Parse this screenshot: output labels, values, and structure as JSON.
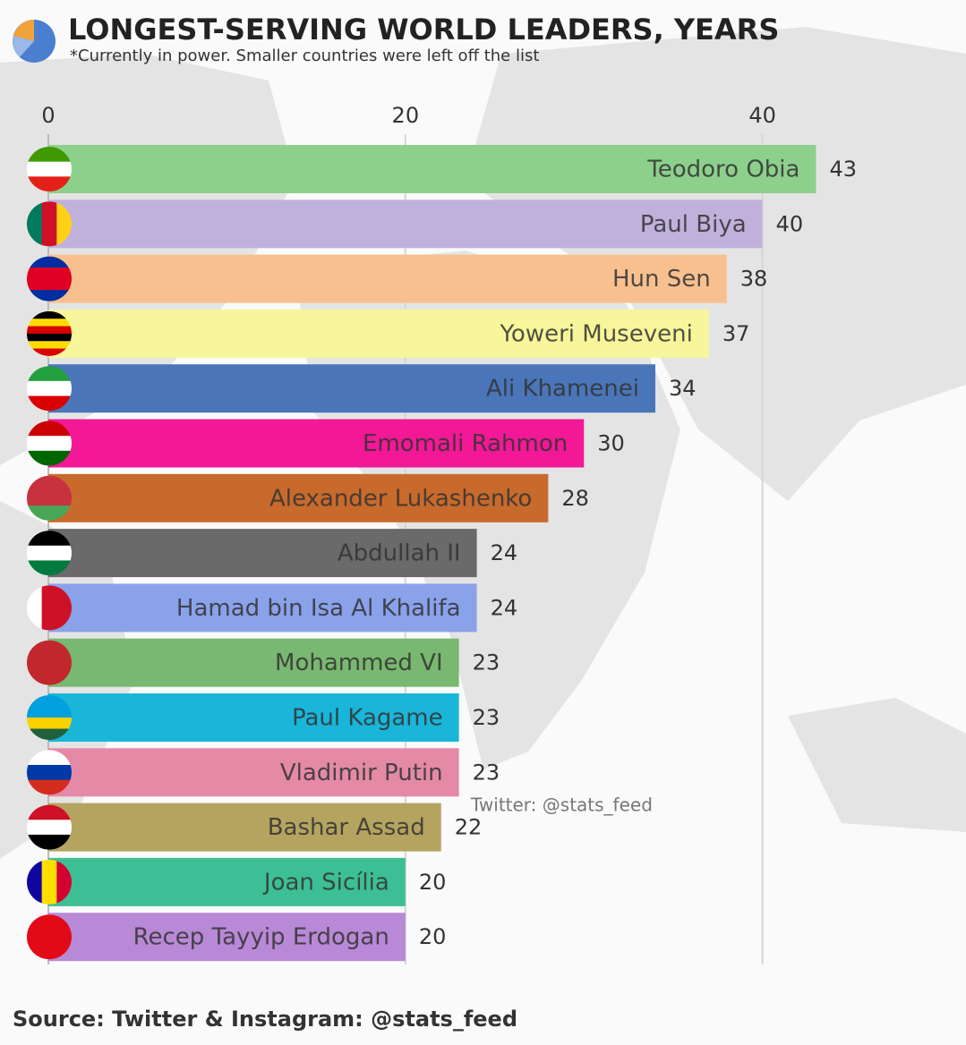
{
  "chart_data": {
    "type": "bar",
    "orientation": "horizontal",
    "title": "LONGEST-SERVING WORLD LEADERS, YEARS",
    "subtitle": "*Currently in power. Smaller countries were left off the list",
    "source": "Source: Twitter & Instagram: @stats_feed",
    "watermark": "Twitter: @stats_feed",
    "categories": [
      "Teodoro Obia",
      "Paul Biya",
      "Hun Sen",
      "Yoweri Museveni",
      "Ali Khamenei",
      "Emomali Rahmon",
      "Alexander Lukashenko",
      "Abdullah II",
      "Hamad bin Isa Al Khalifa",
      "Mohammed VI",
      "Paul Kagame",
      "Vladimir Putin",
      "Bashar Assad",
      "Joan Sicília",
      "Recep Tayyip Erdogan"
    ],
    "values": [
      43,
      40,
      38,
      37,
      34,
      30,
      28,
      24,
      24,
      23,
      23,
      23,
      22,
      20,
      20
    ],
    "colors": [
      "#8dd08c",
      "#c0b1dc",
      "#f9c08f",
      "#f8f69a",
      "#4a76b9",
      "#f21896",
      "#c86a2c",
      "#6a6a6a",
      "#8aa2ea",
      "#79b870",
      "#1ab6d9",
      "#e48aa6",
      "#b5a45f",
      "#3dbf95",
      "#b889d6"
    ],
    "xlim": [
      0,
      51
    ],
    "xticks": [
      0,
      20,
      40
    ],
    "grid": true
  }
}
